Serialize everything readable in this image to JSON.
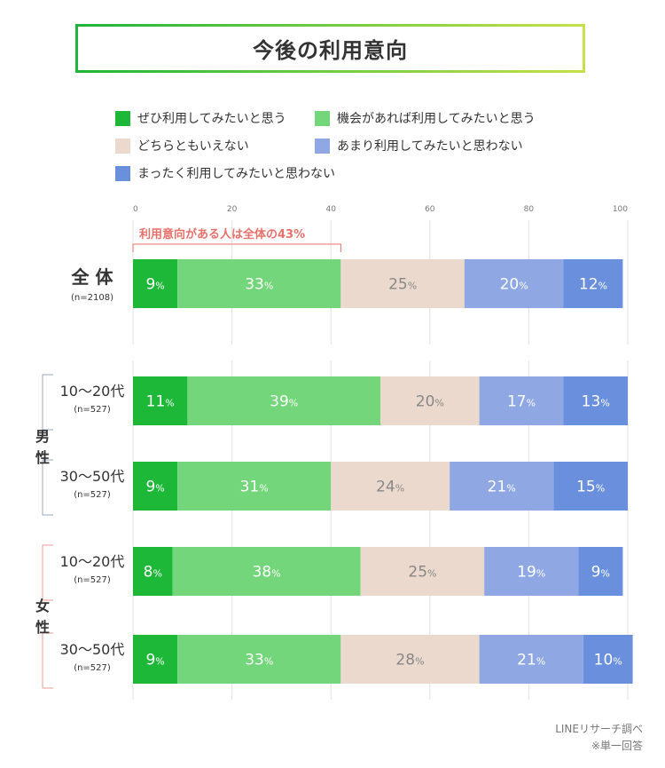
{
  "title": "今後の利用意向",
  "legend": [
    {
      "label": "ぜひ利用してみたいと思う",
      "color": "#1db838"
    },
    {
      "label": "機会があれば利用してみたいと思う",
      "color": "#74d67a"
    },
    {
      "label": "どちらともいえない",
      "color": "#ead9cc"
    },
    {
      "label": "あまり利用してみたいと思わない",
      "color": "#8fa8e3"
    },
    {
      "label": "まったく利用してみたいと思わない",
      "color": "#6a8fdc"
    }
  ],
  "annotation": "利用意向がある人は全体の43%",
  "credit": {
    "source": "LINEリサーチ調べ",
    "note": "※単一回答"
  },
  "chart_data": {
    "type": "bar",
    "orientation": "horizontal",
    "stacked": true,
    "xlim": [
      0,
      100
    ],
    "xticks": [
      "0",
      "20",
      "40",
      "60",
      "80",
      "100"
    ],
    "grid": true,
    "legend_position": "top",
    "title": "今後の利用意向",
    "value_suffix": "%",
    "groups": [
      {
        "label": "",
        "rows": [
          {
            "label": "全 体",
            "n": "(n=2108)",
            "values": [
              9,
              33,
              25,
              20,
              12
            ]
          }
        ]
      },
      {
        "label": "男性",
        "rows": [
          {
            "label": "10〜20代",
            "n": "(n=527)",
            "values": [
              11,
              39,
              20,
              17,
              13
            ]
          },
          {
            "label": "30〜50代",
            "n": "(n=527)",
            "values": [
              9,
              31,
              24,
              21,
              15
            ]
          }
        ]
      },
      {
        "label": "女性",
        "rows": [
          {
            "label": "10〜20代",
            "n": "(n=527)",
            "values": [
              8,
              38,
              25,
              19,
              9
            ]
          },
          {
            "label": "30〜50代",
            "n": "(n=527)",
            "values": [
              9,
              33,
              28,
              21,
              10
            ]
          }
        ]
      }
    ],
    "series_names": [
      "ぜひ利用してみたいと思う",
      "機会があれば利用してみたいと思う",
      "どちらともいえない",
      "あまり利用してみたいと思わない",
      "まったく利用してみたいと思わない"
    ],
    "text_colors": [
      "#ffffff",
      "#ffffff",
      "#888888",
      "#ffffff",
      "#ffffff"
    ]
  }
}
